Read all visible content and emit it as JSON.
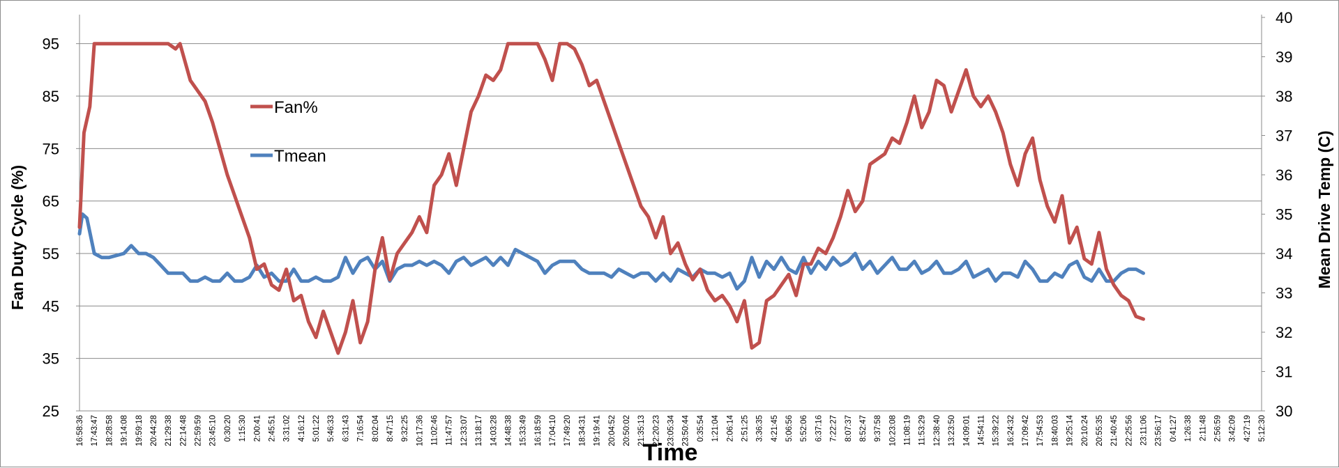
{
  "chart_data": {
    "type": "line",
    "xlabel": "Time",
    "ylabel_left": "Fan Duty Cycle (%)",
    "ylabel_right": "Mean Drive Temp (C)",
    "ylim_left": [
      25,
      100
    ],
    "ylim_right": [
      30,
      40
    ],
    "yticks_left": [
      25,
      35,
      45,
      55,
      65,
      75,
      85,
      95
    ],
    "yticks_right": [
      30,
      31,
      32,
      33,
      34,
      35,
      36,
      37,
      38,
      39,
      40
    ],
    "grid": true,
    "legend_position": "upper-left (inside plot)",
    "x_tick_labels": [
      "16:58:36",
      "17:43:47",
      "18:28:58",
      "19:14:08",
      "19:59:18",
      "20:44:28",
      "21:29:38",
      "22:14:48",
      "22:59:59",
      "23:45:10",
      "0:30:20",
      "1:15:30",
      "2:00:41",
      "2:45:51",
      "3:31:02",
      "4:16:12",
      "5:01:22",
      "5:46:33",
      "6:31:43",
      "7:16:54",
      "8:02:04",
      "8:47:15",
      "9:32:25",
      "10:17:36",
      "11:02:46",
      "11:47:57",
      "12:33:07",
      "13:18:17",
      "14:03:28",
      "14:48:38",
      "15:33:49",
      "16:18:59",
      "17:04:10",
      "17:49:20",
      "18:34:31",
      "19:19:41",
      "20:04:52",
      "20:50:02",
      "21:35:13",
      "22:20:23",
      "23:05:34",
      "23:50:44",
      "0:35:54",
      "1:21:04",
      "2:06:14",
      "2:51:25",
      "3:36:35",
      "4:21:45",
      "5:06:56",
      "5:52:06",
      "6:37:16",
      "7:22:27",
      "8:07:37",
      "8:52:47",
      "9:37:58",
      "10:23:08",
      "11:08:19",
      "11:53:29",
      "12:38:40",
      "13:23:50",
      "14:09:01",
      "14:54:11",
      "15:39:22",
      "16:24:32",
      "17:09:42",
      "17:54:53",
      "18:40:03",
      "19:25:14",
      "20:10:24",
      "20:55:35",
      "21:40:45",
      "22:25:56",
      "23:11:06",
      "23:56:17",
      "0:41:27",
      "1:26:38",
      "2:11:48",
      "2:56:59",
      "3:42:09",
      "4:27:19",
      "5:12:30"
    ],
    "series": [
      {
        "name": "Fan%",
        "axis": "left",
        "color": "#c0504d",
        "points": [
          [
            0,
            60
          ],
          [
            0.3,
            78
          ],
          [
            0.7,
            83
          ],
          [
            1,
            95
          ],
          [
            2,
            95
          ],
          [
            3,
            95
          ],
          [
            4,
            95
          ],
          [
            5,
            95
          ],
          [
            6,
            95
          ],
          [
            6.5,
            94
          ],
          [
            6.8,
            95
          ],
          [
            7,
            93
          ],
          [
            7.5,
            88
          ],
          [
            8,
            86
          ],
          [
            8.5,
            84
          ],
          [
            9,
            80
          ],
          [
            9.5,
            75
          ],
          [
            10,
            70
          ],
          [
            10.5,
            66
          ],
          [
            11,
            62
          ],
          [
            11.5,
            58
          ],
          [
            12,
            52
          ],
          [
            12.5,
            53
          ],
          [
            13,
            49
          ],
          [
            13.5,
            48
          ],
          [
            14,
            52
          ],
          [
            14.5,
            46
          ],
          [
            15,
            47
          ],
          [
            15.5,
            42
          ],
          [
            16,
            39
          ],
          [
            16.5,
            44
          ],
          [
            17,
            40
          ],
          [
            17.5,
            36
          ],
          [
            18,
            40
          ],
          [
            18.5,
            46
          ],
          [
            19,
            38
          ],
          [
            19.5,
            42
          ],
          [
            20,
            52
          ],
          [
            20.5,
            58
          ],
          [
            21,
            50
          ],
          [
            21.5,
            55
          ],
          [
            22,
            57
          ],
          [
            22.5,
            59
          ],
          [
            23,
            62
          ],
          [
            23.5,
            59
          ],
          [
            24,
            68
          ],
          [
            24.5,
            70
          ],
          [
            25,
            74
          ],
          [
            25.5,
            68
          ],
          [
            26,
            75
          ],
          [
            26.5,
            82
          ],
          [
            27,
            85
          ],
          [
            27.5,
            89
          ],
          [
            28,
            88
          ],
          [
            28.5,
            90
          ],
          [
            29,
            95
          ],
          [
            30,
            95
          ],
          [
            31,
            95
          ],
          [
            31.5,
            92
          ],
          [
            32,
            88
          ],
          [
            32.5,
            95
          ],
          [
            33,
            95
          ],
          [
            33.5,
            94
          ],
          [
            34,
            91
          ],
          [
            34.5,
            87
          ],
          [
            35,
            88
          ],
          [
            35.5,
            84
          ],
          [
            36,
            80
          ],
          [
            36.5,
            76
          ],
          [
            37,
            72
          ],
          [
            37.5,
            68
          ],
          [
            38,
            64
          ],
          [
            38.5,
            62
          ],
          [
            39,
            58
          ],
          [
            39.5,
            62
          ],
          [
            40,
            55
          ],
          [
            40.5,
            57
          ],
          [
            41,
            53
          ],
          [
            41.5,
            50
          ],
          [
            42,
            52
          ],
          [
            42.5,
            48
          ],
          [
            43,
            46
          ],
          [
            43.5,
            47
          ],
          [
            44,
            45
          ],
          [
            44.5,
            42
          ],
          [
            45,
            46
          ],
          [
            45.5,
            37
          ],
          [
            46,
            38
          ],
          [
            46.5,
            46
          ],
          [
            47,
            47
          ],
          [
            47.5,
            49
          ],
          [
            48,
            51
          ],
          [
            48.5,
            47
          ],
          [
            49,
            53
          ],
          [
            49.5,
            53
          ],
          [
            50,
            56
          ],
          [
            50.5,
            55
          ],
          [
            51,
            58
          ],
          [
            51.5,
            62
          ],
          [
            52,
            67
          ],
          [
            52.5,
            63
          ],
          [
            53,
            65
          ],
          [
            53.5,
            72
          ],
          [
            54,
            73
          ],
          [
            54.5,
            74
          ],
          [
            55,
            77
          ],
          [
            55.5,
            76
          ],
          [
            56,
            80
          ],
          [
            56.5,
            85
          ],
          [
            57,
            79
          ],
          [
            57.5,
            82
          ],
          [
            58,
            88
          ],
          [
            58.5,
            87
          ],
          [
            59,
            82
          ],
          [
            59.5,
            86
          ],
          [
            60,
            90
          ],
          [
            60.5,
            85
          ],
          [
            61,
            83
          ],
          [
            61.5,
            85
          ],
          [
            62,
            82
          ],
          [
            62.5,
            78
          ],
          [
            63,
            72
          ],
          [
            63.5,
            68
          ],
          [
            64,
            74
          ],
          [
            64.5,
            77
          ],
          [
            65,
            69
          ],
          [
            65.5,
            64
          ],
          [
            66,
            61
          ],
          [
            66.5,
            66
          ],
          [
            67,
            57
          ],
          [
            67.5,
            60
          ],
          [
            68,
            54
          ],
          [
            68.5,
            53
          ],
          [
            69,
            59
          ],
          [
            69.5,
            52
          ],
          [
            70,
            49
          ],
          [
            70.5,
            47
          ],
          [
            71,
            46
          ],
          [
            71.5,
            43
          ],
          [
            72,
            42.5
          ]
        ]
      },
      {
        "name": "Tmean",
        "axis": "right",
        "color": "#4f81bd",
        "points": [
          [
            0,
            34.5
          ],
          [
            0.2,
            35
          ],
          [
            0.5,
            34.9
          ],
          [
            1,
            34
          ],
          [
            1.5,
            33.9
          ],
          [
            2,
            33.9
          ],
          [
            3,
            34
          ],
          [
            3.5,
            34.2
          ],
          [
            4,
            34
          ],
          [
            4.5,
            34
          ],
          [
            5,
            33.9
          ],
          [
            5.5,
            33.7
          ],
          [
            6,
            33.5
          ],
          [
            6.5,
            33.5
          ],
          [
            7,
            33.5
          ],
          [
            7.5,
            33.3
          ],
          [
            8,
            33.3
          ],
          [
            8.5,
            33.4
          ],
          [
            9,
            33.3
          ],
          [
            9.5,
            33.3
          ],
          [
            10,
            33.5
          ],
          [
            10.5,
            33.3
          ],
          [
            11,
            33.3
          ],
          [
            11.5,
            33.4
          ],
          [
            12,
            33.7
          ],
          [
            12.5,
            33.4
          ],
          [
            13,
            33.5
          ],
          [
            13.5,
            33.3
          ],
          [
            14,
            33.3
          ],
          [
            14.5,
            33.6
          ],
          [
            15,
            33.3
          ],
          [
            15.5,
            33.3
          ],
          [
            16,
            33.4
          ],
          [
            16.5,
            33.3
          ],
          [
            17,
            33.3
          ],
          [
            17.5,
            33.4
          ],
          [
            18,
            33.9
          ],
          [
            18.5,
            33.5
          ],
          [
            19,
            33.8
          ],
          [
            19.5,
            33.9
          ],
          [
            20,
            33.6
          ],
          [
            20.5,
            33.8
          ],
          [
            21,
            33.3
          ],
          [
            21.5,
            33.6
          ],
          [
            22,
            33.7
          ],
          [
            22.5,
            33.7
          ],
          [
            23,
            33.8
          ],
          [
            23.5,
            33.7
          ],
          [
            24,
            33.8
          ],
          [
            24.5,
            33.7
          ],
          [
            25,
            33.5
          ],
          [
            25.5,
            33.8
          ],
          [
            26,
            33.9
          ],
          [
            26.5,
            33.7
          ],
          [
            27,
            33.8
          ],
          [
            27.5,
            33.9
          ],
          [
            28,
            33.7
          ],
          [
            28.5,
            33.9
          ],
          [
            29,
            33.7
          ],
          [
            29.5,
            34.1
          ],
          [
            30,
            34.0
          ],
          [
            30.5,
            33.9
          ],
          [
            31,
            33.8
          ],
          [
            31.5,
            33.5
          ],
          [
            32,
            33.7
          ],
          [
            32.5,
            33.8
          ],
          [
            33,
            33.8
          ],
          [
            33.5,
            33.8
          ],
          [
            34,
            33.6
          ],
          [
            34.5,
            33.5
          ],
          [
            35,
            33.5
          ],
          [
            35.5,
            33.5
          ],
          [
            36,
            33.4
          ],
          [
            36.5,
            33.6
          ],
          [
            37,
            33.5
          ],
          [
            37.5,
            33.4
          ],
          [
            38,
            33.5
          ],
          [
            38.5,
            33.5
          ],
          [
            39,
            33.3
          ],
          [
            39.5,
            33.5
          ],
          [
            40,
            33.3
          ],
          [
            40.5,
            33.6
          ],
          [
            41,
            33.5
          ],
          [
            41.5,
            33.4
          ],
          [
            42,
            33.6
          ],
          [
            42.5,
            33.5
          ],
          [
            43,
            33.5
          ],
          [
            43.5,
            33.4
          ],
          [
            44,
            33.5
          ],
          [
            44.5,
            33.1
          ],
          [
            45,
            33.3
          ],
          [
            45.5,
            33.9
          ],
          [
            46,
            33.4
          ],
          [
            46.5,
            33.8
          ],
          [
            47,
            33.6
          ],
          [
            47.5,
            33.9
          ],
          [
            48,
            33.6
          ],
          [
            48.5,
            33.5
          ],
          [
            49,
            33.9
          ],
          [
            49.5,
            33.5
          ],
          [
            50,
            33.8
          ],
          [
            50.5,
            33.6
          ],
          [
            51,
            33.9
          ],
          [
            51.5,
            33.7
          ],
          [
            52,
            33.8
          ],
          [
            52.5,
            34.0
          ],
          [
            53,
            33.6
          ],
          [
            53.5,
            33.8
          ],
          [
            54,
            33.5
          ],
          [
            54.5,
            33.7
          ],
          [
            55,
            33.9
          ],
          [
            55.5,
            33.6
          ],
          [
            56,
            33.6
          ],
          [
            56.5,
            33.8
          ],
          [
            57,
            33.5
          ],
          [
            57.5,
            33.6
          ],
          [
            58,
            33.8
          ],
          [
            58.5,
            33.5
          ],
          [
            59,
            33.5
          ],
          [
            59.5,
            33.6
          ],
          [
            60,
            33.8
          ],
          [
            60.5,
            33.4
          ],
          [
            61,
            33.5
          ],
          [
            61.5,
            33.6
          ],
          [
            62,
            33.3
          ],
          [
            62.5,
            33.5
          ],
          [
            63,
            33.5
          ],
          [
            63.5,
            33.4
          ],
          [
            64,
            33.8
          ],
          [
            64.5,
            33.6
          ],
          [
            65,
            33.3
          ],
          [
            65.5,
            33.3
          ],
          [
            66,
            33.5
          ],
          [
            66.5,
            33.4
          ],
          [
            67,
            33.7
          ],
          [
            67.5,
            33.8
          ],
          [
            68,
            33.4
          ],
          [
            68.5,
            33.3
          ],
          [
            69,
            33.6
          ],
          [
            69.5,
            33.3
          ],
          [
            70,
            33.3
          ],
          [
            70.5,
            33.5
          ],
          [
            71,
            33.6
          ],
          [
            71.5,
            33.6
          ],
          [
            72,
            33.5
          ]
        ]
      }
    ]
  }
}
